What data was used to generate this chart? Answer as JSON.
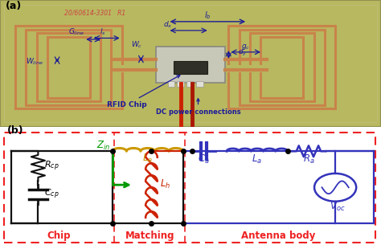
{
  "figsize": [
    4.74,
    3.1
  ],
  "dpi": 100,
  "pcb_color": "#b8b860",
  "pcb_edge": "#909050",
  "copper_color": "#c8844a",
  "chip_bg": "#d8d8c8",
  "chip_dark": "#383838",
  "label_color": "#1a1a99",
  "red_wire": "#cc0000",
  "circuit_bg": "#f5f5f0",
  "dashed_red": "#ee2222",
  "chip_color_ckt": "#111111",
  "match_gold": "#cc9900",
  "match_red": "#cc2200",
  "ant_blue": "#3333bb",
  "green_arrow": "#009900",
  "photo_handwriting": "#cc4444",
  "section_labels": [
    "Chip",
    "Matching",
    "Antenna body"
  ],
  "panel_labels": [
    "(a)",
    "(b)"
  ]
}
